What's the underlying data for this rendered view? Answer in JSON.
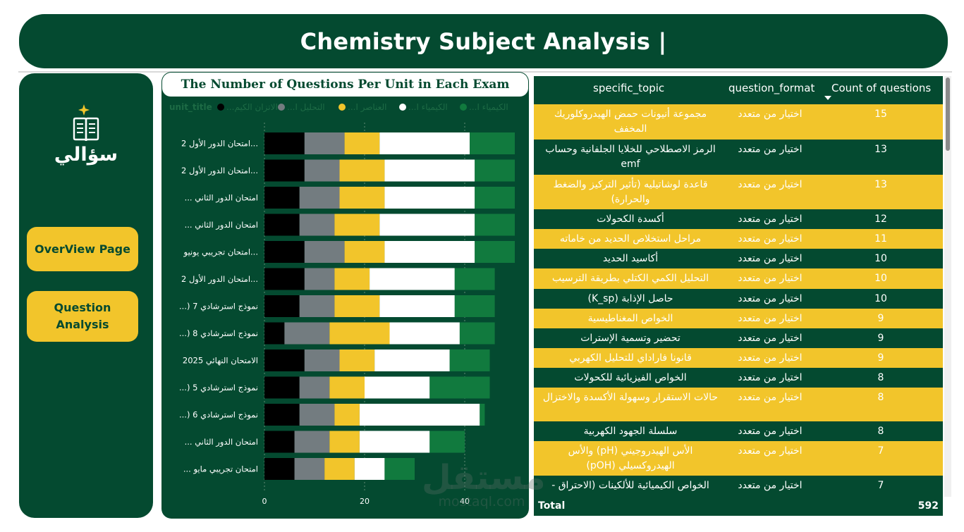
{
  "header": {
    "title": "Chemistry Subject Analysis |"
  },
  "sidebar": {
    "logo_text": "سؤالي",
    "nav": [
      {
        "label": "OverView Page"
      },
      {
        "label": "Question Analysis"
      }
    ]
  },
  "colors": {
    "brand_green": "#044a30",
    "accent_yellow": "#f2c52b",
    "series": [
      "#000000",
      "#737c80",
      "#f2c52b",
      "#ffffff",
      "#117a3e"
    ]
  },
  "chart_data": {
    "type": "bar",
    "orientation": "horizontal",
    "stacked": true,
    "title": "The Number of Questions Per Unit in Each Exam",
    "legend_title": "unit_title",
    "legend_position": "top",
    "categories": [
      "امتحان الدور الأول 2...",
      "امتحان الدور الأول 2...",
      "... امتحان الدور الثاني",
      "... امتحان الدور الثاني",
      "امتحان تجريبي يونيو...",
      "امتحان الدور الأول 2...",
      "...) نموذج استرشادي 7",
      "...) نموذج استرشادي 8",
      "الامتحان النهائي 2025",
      "...) نموذج استرشادي 5",
      "...) نموذج استرشادي 6",
      "... امتحان الدور الثاني",
      "... امتحان تجريبي مايو"
    ],
    "series": [
      {
        "name": "...الاتزان الكيم",
        "values": [
          8,
          8,
          7,
          7,
          8,
          8,
          7,
          4,
          8,
          7,
          7,
          6,
          6
        ]
      },
      {
        "name": "...التحليل ا",
        "values": [
          8,
          7,
          8,
          7,
          8,
          6,
          7,
          9,
          7,
          6,
          7,
          7,
          6
        ]
      },
      {
        "name": "...العناصر ا",
        "values": [
          7,
          9,
          9,
          9,
          8,
          7,
          9,
          12,
          7,
          7,
          5,
          6,
          6
        ]
      },
      {
        "name": "...الكيمياء ا",
        "values": [
          18,
          18,
          18,
          19,
          18,
          17,
          15,
          14,
          15,
          13,
          24,
          14,
          6
        ]
      },
      {
        "name": "...الكيمياء ا",
        "values": [
          9,
          8,
          8,
          8,
          8,
          8,
          8,
          7,
          8,
          12,
          1,
          7,
          6
        ]
      }
    ],
    "x_ticks": [
      "0",
      "20",
      "40"
    ],
    "xlim": [
      0,
      50
    ],
    "grid": "vertical dotted"
  },
  "table": {
    "columns": [
      "specific_topic",
      "question_format",
      "Count of questions"
    ],
    "sorted_column": "Count of questions",
    "rows": [
      {
        "topic": "مجموعة أنيونات حمض الهيدروكلوريك المخفف",
        "format": "اختيار من متعدد",
        "count": "15"
      },
      {
        "topic": "الرمز الاصطلاحي للخلايا الجلفانية وحساب emf",
        "format": "اختيار من متعدد",
        "count": "13"
      },
      {
        "topic": "قاعدة لوشاتيليه (تأثير التركيز والضغط والحرارة)",
        "format": "اختيار من متعدد",
        "count": "13"
      },
      {
        "topic": "أكسدة الكحولات",
        "format": "اختيار من متعدد",
        "count": "12"
      },
      {
        "topic": "مراحل استخلاص الحديد من خاماته",
        "format": "اختيار من متعدد",
        "count": "11"
      },
      {
        "topic": "أكاسيد الحديد",
        "format": "اختيار من متعدد",
        "count": "10"
      },
      {
        "topic": "التحليل الكمي الكتلي بطريقة الترسيب",
        "format": "اختيار من متعدد",
        "count": "10"
      },
      {
        "topic": "حاصل الإذابة (K_sp)",
        "format": "اختيار من متعدد",
        "count": "10"
      },
      {
        "topic": "الخواص المغناطيسية",
        "format": "اختيار من متعدد",
        "count": "9"
      },
      {
        "topic": "تحضير وتسمية الإسترات",
        "format": "اختيار من متعدد",
        "count": "9"
      },
      {
        "topic": "قانونا فاراداي للتحليل الكهربي",
        "format": "اختيار من متعدد",
        "count": "9"
      },
      {
        "topic": "الخواص الفيزيائية للكحولات",
        "format": "اختيار من متعدد",
        "count": "8"
      },
      {
        "topic": "حالات الاستقرار وسهولة الأكسدة والاختزال",
        "format": "اختيار من متعدد",
        "count": "8"
      },
      {
        "topic": "سلسلة الجهود الكهربية",
        "format": "اختيار من متعدد",
        "count": "8"
      },
      {
        "topic": "الأس الهيدروجيني (pH) والأس الهيدروكسيلي (pOH)",
        "format": "اختيار من متعدد",
        "count": "7"
      },
      {
        "topic": "الخواص الكيميائية للألكينات (الاحتراق -",
        "format": "اختيار من متعدد",
        "count": "7"
      }
    ],
    "total_label": "Total",
    "total_value": "592"
  },
  "watermark": {
    "arabic": "مستقل",
    "latin": "mostaql.com"
  }
}
